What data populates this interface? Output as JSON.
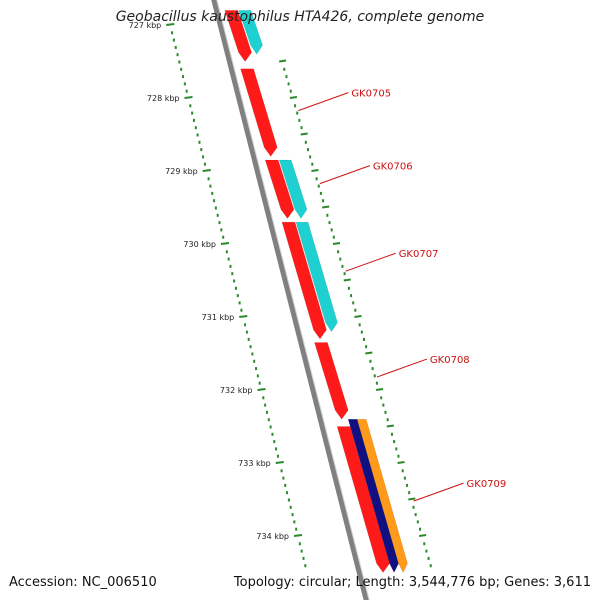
{
  "title": "Geobacillus kaustophilus HTA426, complete genome",
  "footer": {
    "accession": "Accession: NC_006510",
    "stats": "Topology: circular; Length: 3,544,776 bp; Genes: 3,611"
  },
  "colors": {
    "forward_gene": "#ff1a1a",
    "reverse_cds": "#1fd0d0",
    "dark_gene": "#101080",
    "orange_gene": "#ff9a1a",
    "gene_label": "#cc1111",
    "ruler": "#2a8a2a",
    "backbone": "#808080"
  },
  "chart_data": {
    "type": "genome-map",
    "ruler": {
      "unit": "kbp",
      "ticks": [
        {
          "kbp": 727,
          "label": "727 kbp"
        },
        {
          "kbp": 728,
          "label": "728 kbp"
        },
        {
          "kbp": 729,
          "label": "729 kbp"
        },
        {
          "kbp": 730,
          "label": "730 kbp"
        },
        {
          "kbp": 731,
          "label": "731 kbp"
        },
        {
          "kbp": 732,
          "label": "732 kbp"
        },
        {
          "kbp": 733,
          "label": "733 kbp"
        },
        {
          "kbp": 734,
          "label": "734 kbp"
        }
      ]
    },
    "genes": [
      {
        "name": "",
        "kind": "forward_gene",
        "start_kbp": 726.8,
        "end_kbp": 727.5
      },
      {
        "name": "GK0705",
        "kind": "forward_gene",
        "start_kbp": 727.6,
        "end_kbp": 728.8
      },
      {
        "name": "GK0706",
        "kind": "forward_gene",
        "start_kbp": 728.85,
        "end_kbp": 729.65
      },
      {
        "name": "GK0707",
        "kind": "forward_gene",
        "start_kbp": 729.7,
        "end_kbp": 731.3
      },
      {
        "name": "GK0708",
        "kind": "forward_gene",
        "start_kbp": 731.35,
        "end_kbp": 732.4
      },
      {
        "name": "GK0709",
        "kind": "forward_gene",
        "start_kbp": 732.5,
        "end_kbp": 734.5
      }
    ],
    "cds_tracks": [
      {
        "kind": "reverse_cds",
        "start_kbp": 726.8,
        "end_kbp": 727.4
      },
      {
        "kind": "reverse_cds",
        "start_kbp": 728.85,
        "end_kbp": 729.65
      },
      {
        "kind": "reverse_cds",
        "start_kbp": 729.7,
        "end_kbp": 731.2
      },
      {
        "kind": "dark_gene",
        "start_kbp": 732.4,
        "end_kbp": 734.5
      },
      {
        "kind": "orange_gene",
        "start_kbp": 732.4,
        "end_kbp": 734.5
      }
    ],
    "gene_label_anchor_kbp": [
      {
        "name": "GK0705",
        "kbp": 728.2
      },
      {
        "name": "GK0706",
        "kbp": 729.2
      },
      {
        "name": "GK0707",
        "kbp": 730.4
      },
      {
        "name": "GK0708",
        "kbp": 731.85
      },
      {
        "name": "GK0709",
        "kbp": 733.55
      }
    ]
  }
}
